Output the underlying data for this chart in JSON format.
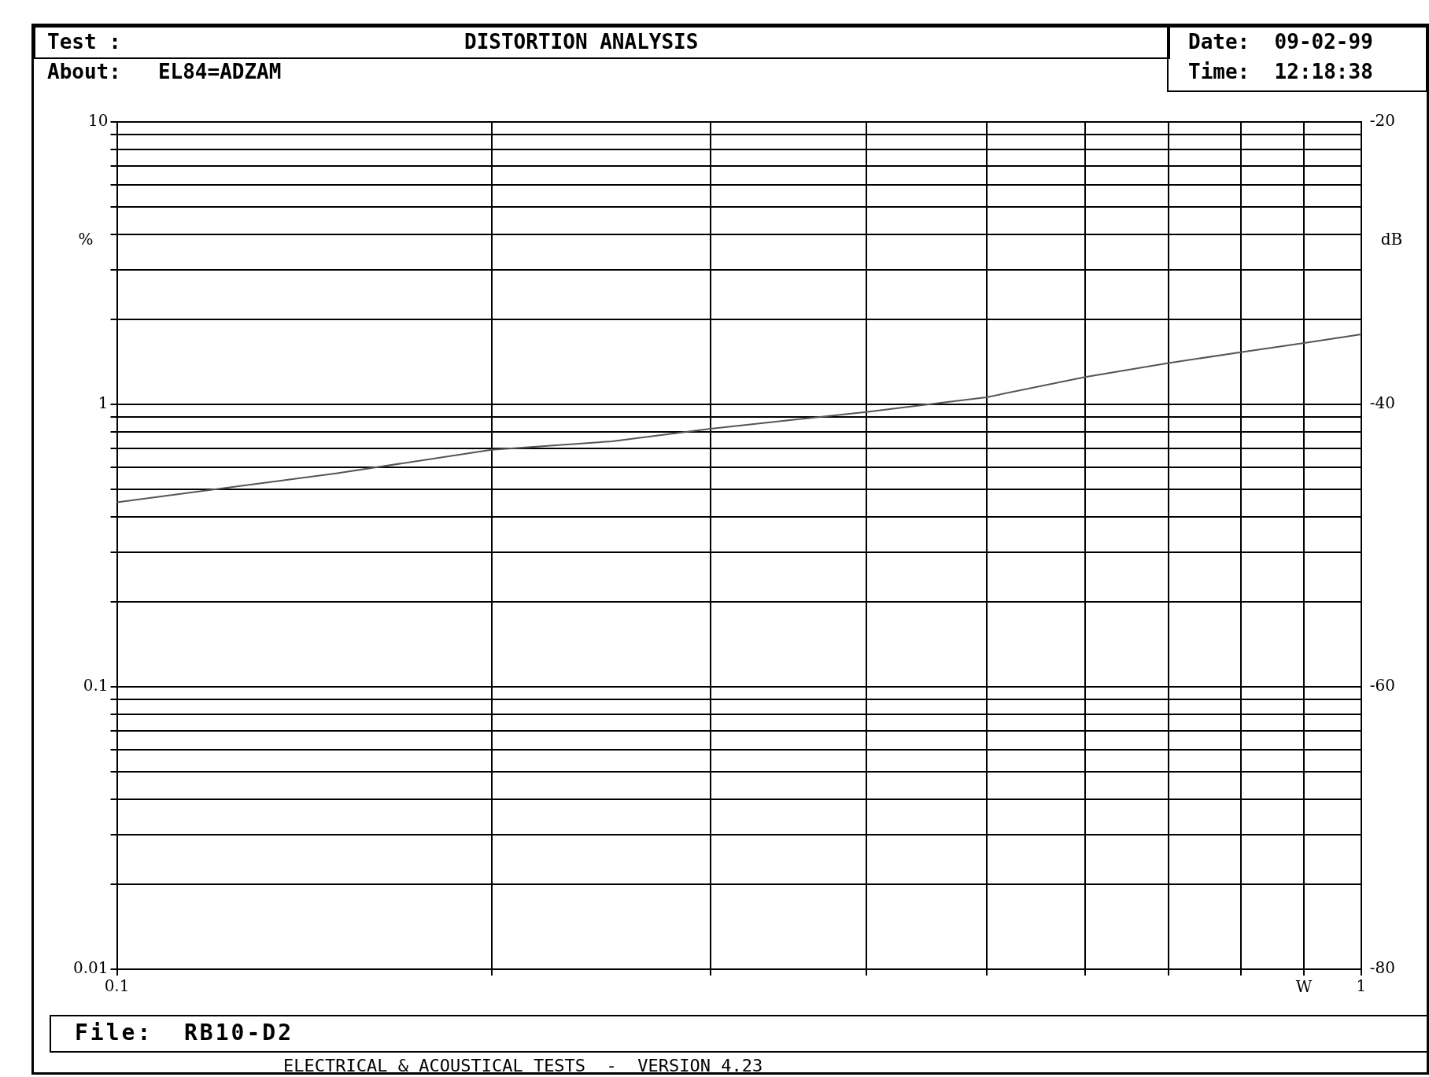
{
  "chart_data": {
    "type": "line",
    "title": "DISTORTION ANALYSIS",
    "xlabel": "W",
    "ylabel": "%",
    "y2label": "dB",
    "annotations": [
      "Test :",
      "About:   EL84=ADZAM",
      "Date:  09-02-99",
      "Time:  12:18:38",
      "File:  RB10-D2",
      "ELECTRICAL & ACOUSTICAL TESTS  -  VERSION 4.23"
    ],
    "x": [
      0.1,
      0.15,
      0.2,
      0.25,
      0.3,
      0.4,
      0.5,
      0.6,
      0.7,
      0.8,
      0.9,
      1.0
    ],
    "series": [
      {
        "color": "#555555",
        "values": [
          0.45,
          0.57,
          0.69,
          0.74,
          0.82,
          0.94,
          1.06,
          1.25,
          1.4,
          1.53,
          1.65,
          1.77
        ]
      }
    ],
    "log": "xy",
    "grid": true,
    "legend": false,
    "marker": "none",
    "line_style": "solid",
    "xlim": [
      0.1,
      1
    ],
    "xticks": [
      0.1,
      {
        "value": 0.2,
        "label": null
      },
      {
        "value": 0.3,
        "label": null
      },
      {
        "value": 0.4,
        "label": null
      },
      {
        "value": 0.5,
        "label": null
      },
      {
        "value": 0.6,
        "label": null
      },
      {
        "value": 0.7,
        "label": null
      },
      {
        "value": 0.8,
        "label": null
      },
      {
        "value": 0.9,
        "label": null
      },
      1
    ],
    "ylim": [
      0.01,
      10
    ],
    "yticks": [
      0.01,
      {
        "value": 0.02,
        "label": null
      },
      {
        "value": 0.03,
        "label": null
      },
      {
        "value": 0.04,
        "label": null
      },
      {
        "value": 0.05,
        "label": null
      },
      {
        "value": 0.06,
        "label": null
      },
      {
        "value": 0.07,
        "label": null
      },
      {
        "value": 0.08,
        "label": null
      },
      {
        "value": 0.09,
        "label": null
      },
      0.1,
      {
        "value": 0.2,
        "label": null
      },
      {
        "value": 0.3,
        "label": null
      },
      {
        "value": 0.4,
        "label": null
      },
      {
        "value": 0.5,
        "label": null
      },
      {
        "value": 0.6,
        "label": null
      },
      {
        "value": 0.7,
        "label": null
      },
      {
        "value": 0.8,
        "label": null
      },
      {
        "value": 0.9,
        "label": null
      },
      1,
      {
        "value": 2,
        "label": null
      },
      {
        "value": 3,
        "label": null
      },
      {
        "value": 4,
        "label": null
      },
      {
        "value": 5,
        "label": null
      },
      {
        "value": 6,
        "label": null
      },
      {
        "value": 7,
        "label": null
      },
      {
        "value": 8,
        "label": null
      },
      {
        "value": 9,
        "label": null
      },
      10
    ],
    "y2lim": [
      -80,
      -20
    ],
    "y2ticks": [
      -80,
      -60,
      -40,
      -20
    ]
  }
}
